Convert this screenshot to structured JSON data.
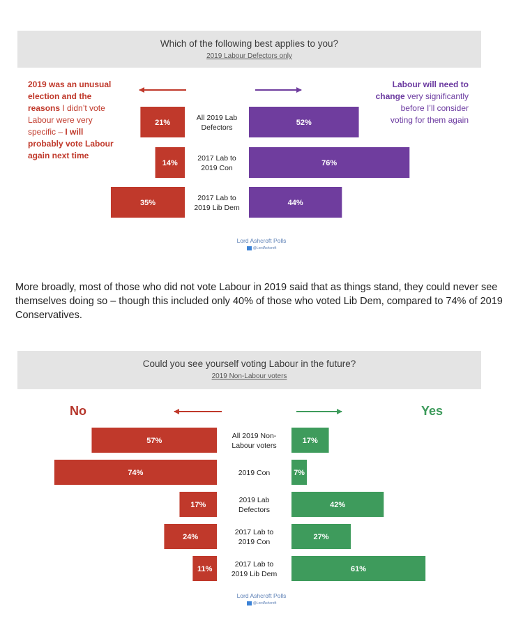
{
  "chart_data": [
    {
      "type": "bar",
      "title": "Which of the following best applies to you?",
      "subtitle": "2019 Labour Defectors only",
      "categories": [
        [
          "All 2019 Lab",
          "Defectors"
        ],
        [
          "2017 Lab to",
          "2019 Con"
        ],
        [
          "2017 Lab to",
          "2019 Lib Dem"
        ]
      ],
      "series": [
        {
          "name": "2019 was an unusual election and the reasons I didn't vote Labour were very specific – I will probably vote Labour again next time",
          "values": [
            21,
            14,
            35
          ],
          "labels": [
            "21%",
            "14%",
            "35%"
          ],
          "color": "#c0392b",
          "side": "left"
        },
        {
          "name": "Labour will need to change very significantly before I'll consider voting for them again",
          "values": [
            52,
            76,
            44
          ],
          "labels": [
            "52%",
            "76%",
            "44%"
          ],
          "color": "#6f3d9e",
          "side": "right"
        }
      ]
    },
    {
      "type": "bar",
      "title": "Could you see yourself voting Labour in the future?",
      "subtitle": "2019 Non-Labour voters",
      "categories": [
        [
          "All 2019 Non-",
          "Labour voters"
        ],
        [
          "2019 Con"
        ],
        [
          "2019 Lab",
          "Defectors"
        ],
        [
          "2017 Lab to",
          "2019 Con"
        ],
        [
          "2017 Lab to",
          "2019 Lib Dem"
        ]
      ],
      "series": [
        {
          "name": "No",
          "values": [
            57,
            74,
            17,
            24,
            11
          ],
          "labels": [
            "57%",
            "74%",
            "17%",
            "24%",
            "11%"
          ],
          "color": "#c0392b",
          "side": "left"
        },
        {
          "name": "Yes",
          "values": [
            17,
            7,
            42,
            27,
            61
          ],
          "labels": [
            "17%",
            "7%",
            "42%",
            "27%",
            "61%"
          ],
          "color": "#3e9b5c",
          "side": "right"
        }
      ]
    }
  ],
  "chart1_text": {
    "left_lines": [
      [
        {
          "t": "2019 was an unusual",
          "b": true
        }
      ],
      [
        {
          "t": "election and the",
          "b": true
        }
      ],
      [
        {
          "t": "reasons",
          "b": true
        },
        {
          "t": " I didn’t vote",
          "b": false
        }
      ],
      [
        {
          "t": "Labour were very",
          "b": false
        }
      ],
      [
        {
          "t": "specific – ",
          "b": false
        },
        {
          "t": "I will",
          "b": true
        }
      ],
      [
        {
          "t": "probably vote Labour",
          "b": true
        }
      ],
      [
        {
          "t": "again next time",
          "b": true
        }
      ]
    ],
    "right_lines": [
      [
        {
          "t": "Labour will need to",
          "b": true
        }
      ],
      [
        {
          "t": "change",
          "b": true
        },
        {
          "t": " very significantly",
          "b": false
        }
      ],
      [
        {
          "t": "before I’ll consider",
          "b": false
        }
      ],
      [
        {
          "t": "voting for them again",
          "b": false
        }
      ]
    ]
  },
  "chart2_text": {
    "no_label": "No",
    "yes_label": "Yes"
  },
  "credit": {
    "text": "Lord Ashcroft Polls",
    "handle": "@LordAshcroft"
  },
  "paragraph": "More broadly, most of those who did not vote Labour in 2019 said that as things stand, they could never see themselves doing so – though this included only 40% of those who voted Lib Dem, compared to 74% of 2019 Conservatives."
}
